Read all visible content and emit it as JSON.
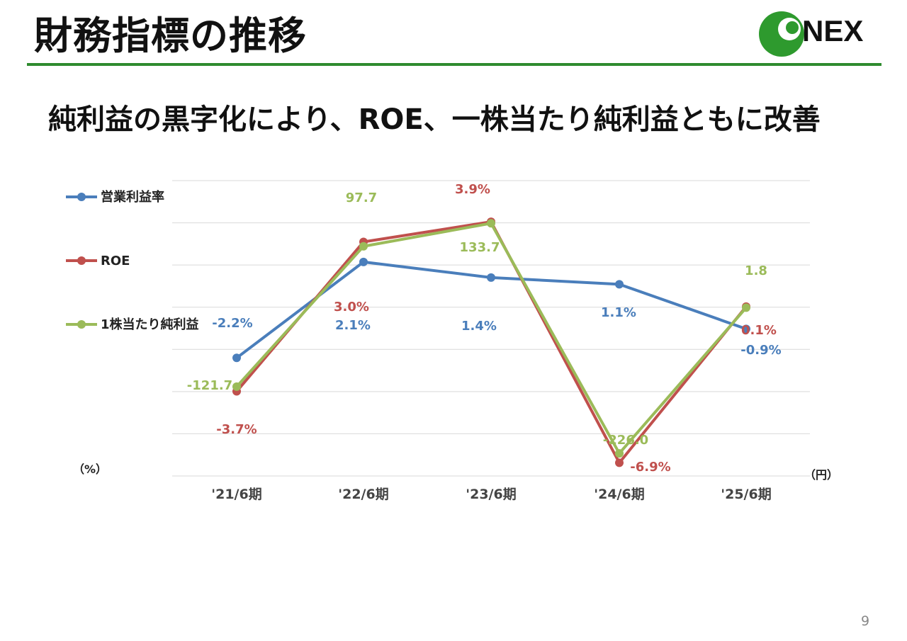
{
  "header": {
    "title": "財務指標の推移",
    "logo_text": "NEX",
    "rule_color": "#2e8b2e"
  },
  "headline": "純利益の黒字化により、ROE、一株当たり純利益ともに改善",
  "chart_data": {
    "type": "line",
    "categories": [
      "'21/6期",
      "'22/6期",
      "'23/6期",
      "'24/6期",
      "'25/6期"
    ],
    "left_axis_unit": "（%）",
    "right_axis_unit": "（円）",
    "grid": true,
    "legend": "left",
    "series": [
      {
        "name": "営業利益率",
        "axis": "left",
        "color": "#4a7ebb",
        "values": [
          -2.2,
          2.1,
          1.4,
          1.1,
          -0.9
        ],
        "labels": [
          "-2.2%",
          "2.1%",
          "1.4%",
          "1.1%",
          "-0.9%"
        ]
      },
      {
        "name": "ROE",
        "axis": "left",
        "color": "#c0504d",
        "values": [
          -3.7,
          3.0,
          3.9,
          -6.9,
          0.1
        ],
        "labels": [
          "-3.7%",
          "3.0%",
          "3.9%",
          "-6.9%",
          "0.1%"
        ]
      },
      {
        "name": "1株当たり純利益",
        "axis": "right",
        "color": "#9bbb59",
        "values": [
          -121.7,
          97.7,
          133.7,
          -226.0,
          1.8
        ],
        "labels": [
          "-121.7",
          "97.7",
          "133.7",
          "-226.0",
          "1.8"
        ]
      }
    ]
  },
  "footer": {
    "page_number": "9"
  }
}
